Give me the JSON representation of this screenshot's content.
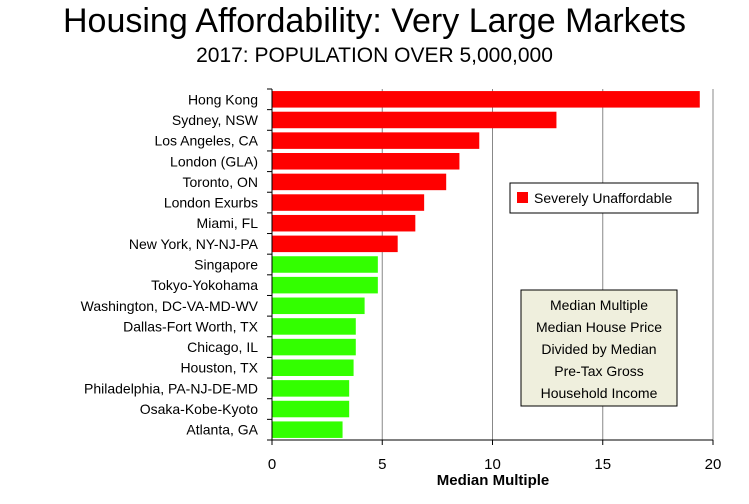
{
  "chart_data": {
    "type": "bar",
    "orientation": "horizontal",
    "title": "Housing Affordability: Very Large Markets",
    "subtitle": "2017: POPULATION OVER 5,000,000",
    "xlabel": "Median Multiple",
    "ylabel": "",
    "xlim": [
      0,
      20
    ],
    "xticks": [
      "0",
      "5",
      "10",
      "15",
      "20"
    ],
    "grid": "vertical",
    "categories": [
      "Hong Kong",
      "Sydney, NSW",
      "Los Angeles, CA",
      "London (GLA)",
      "Toronto, ON",
      "London Exurbs",
      "Miami, FL",
      "New York, NY-NJ-PA",
      "Singapore",
      "Tokyo-Yokohama",
      "Washington, DC-VA-MD-WV",
      "Dallas-Fort Worth, TX",
      "Chicago, IL",
      "Houston, TX",
      "Philadelphia, PA-NJ-DE-MD",
      "Osaka-Kobe-Kyoto",
      "Atlanta, GA"
    ],
    "values": [
      19.4,
      12.9,
      9.4,
      8.5,
      7.9,
      6.9,
      6.5,
      5.7,
      4.8,
      4.8,
      4.2,
      3.8,
      3.8,
      3.7,
      3.5,
      3.5,
      3.2
    ],
    "bar_colors": [
      "#ff0000",
      "#ff0000",
      "#ff0000",
      "#ff0000",
      "#ff0000",
      "#ff0000",
      "#ff0000",
      "#ff0000",
      "#33ff00",
      "#33ff00",
      "#33ff00",
      "#33ff00",
      "#33ff00",
      "#33ff00",
      "#33ff00",
      "#33ff00",
      "#33ff00"
    ],
    "legend": {
      "position": "right",
      "entries": [
        {
          "label": "Severely Unaffordable",
          "color": "#ff0000"
        }
      ]
    },
    "note": {
      "lines": [
        "Median Multiple",
        "Median House Price",
        "Divided by Median",
        "Pre-Tax Gross",
        "Household Income"
      ],
      "background": "#efefdd"
    }
  }
}
